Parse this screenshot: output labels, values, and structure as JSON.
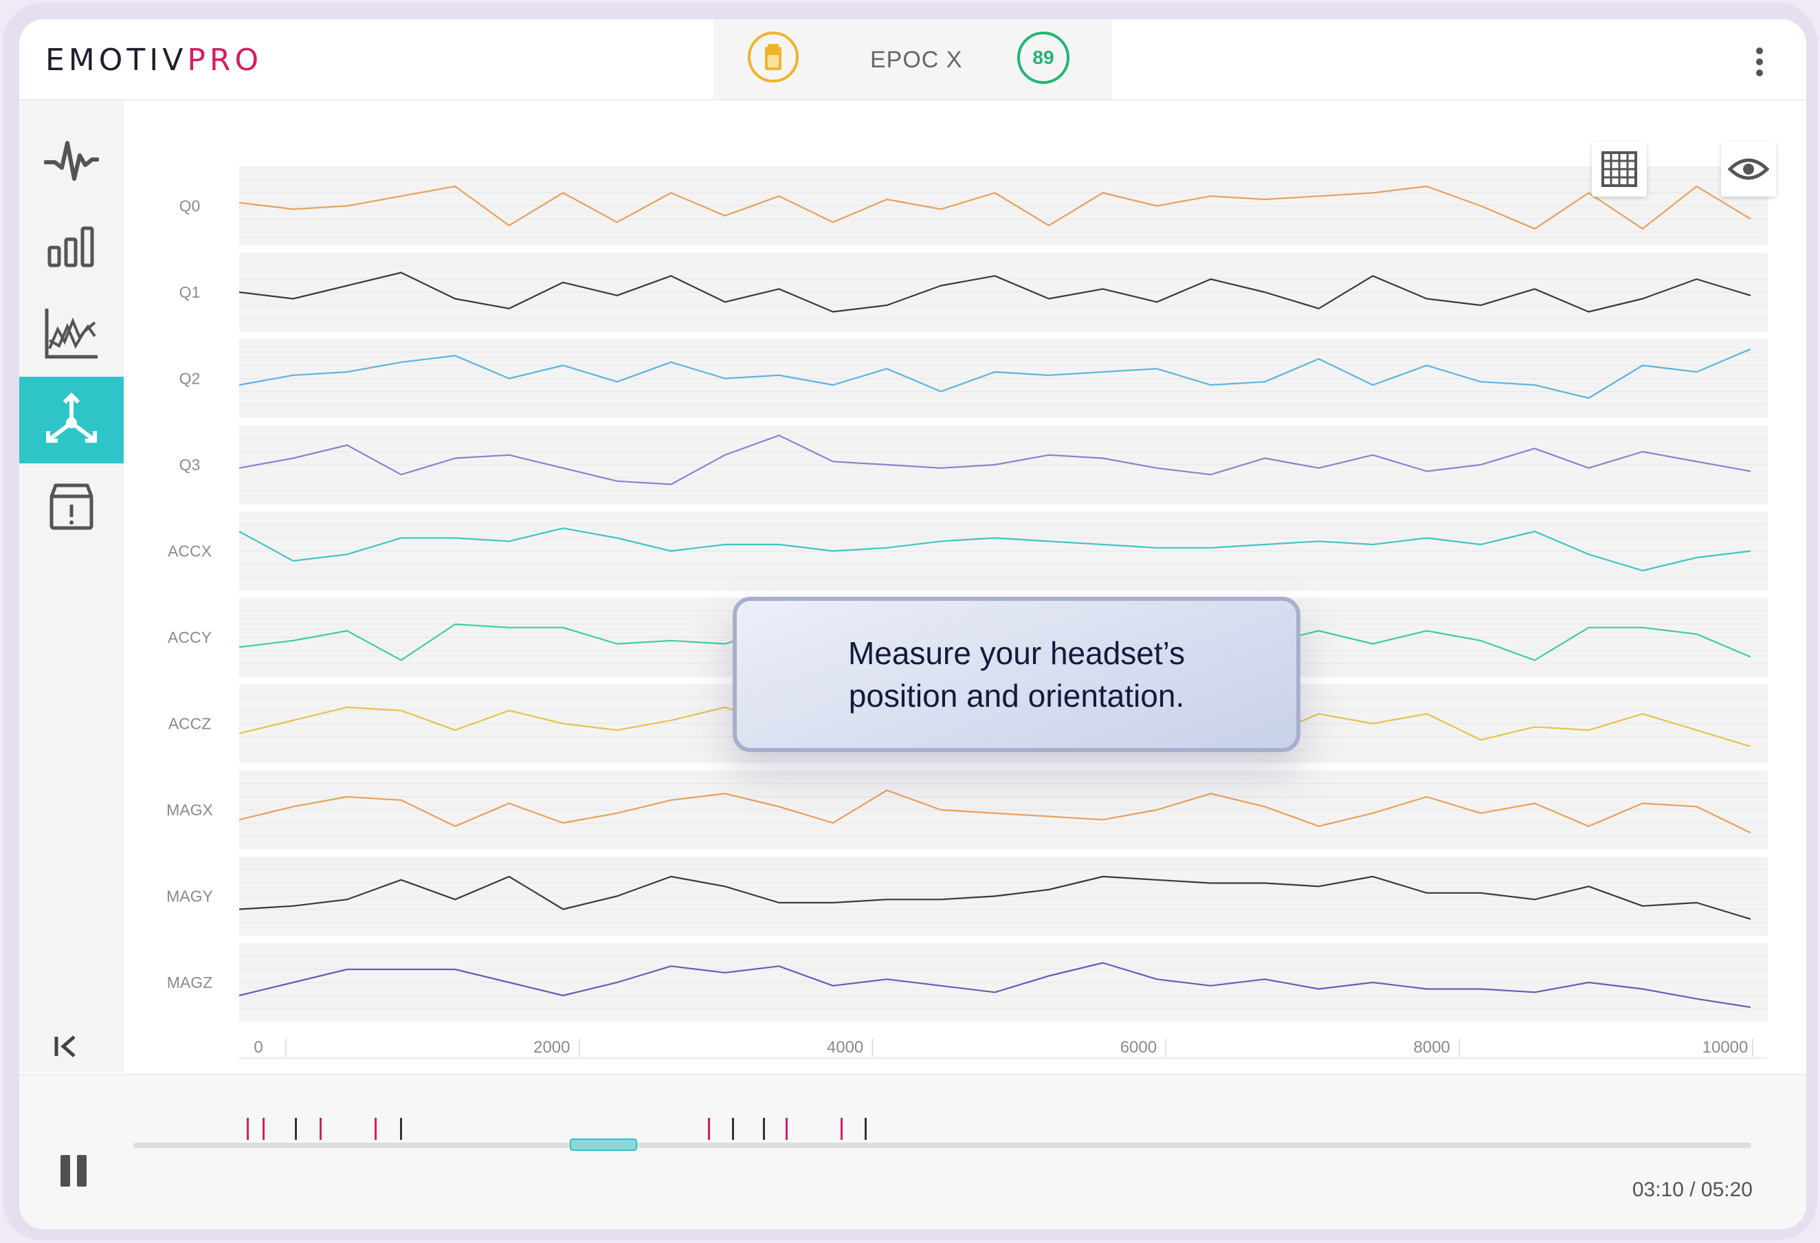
{
  "app": {
    "logo_primary": "EMOTIV",
    "logo_secondary": "PRO",
    "brand_color": "#d81b60",
    "accent_color": "#2ec4c8"
  },
  "header": {
    "battery_icon": "battery-icon",
    "device_name": "EPOC X",
    "contact_quality": "89",
    "menu_icon": "more-vertical-icon"
  },
  "sidebar": {
    "items": [
      {
        "icon": "waveform-icon",
        "active": false
      },
      {
        "icon": "bar-chart-icon",
        "active": false
      },
      {
        "icon": "line-chart-icon",
        "active": false
      },
      {
        "icon": "motion-axes-icon",
        "active": true
      },
      {
        "icon": "marker-box-icon",
        "active": false
      }
    ],
    "collapse_icon": "collapse-left-icon"
  },
  "toolbar": {
    "grid_icon": "grid-icon",
    "visibility_icon": "eye-icon"
  },
  "tooltip": {
    "line1": "Measure your headset’s",
    "line2": "position and orientation."
  },
  "chart_data": {
    "type": "line",
    "x_ticks": [
      "0",
      "2000",
      "4000",
      "6000",
      "8000",
      "10000"
    ],
    "xlim": [
      0,
      10000
    ],
    "grid": true,
    "series": [
      {
        "name": "Q0",
        "color": "#e8a05a",
        "values": [
          0.45,
          0.55,
          0.5,
          0.35,
          0.2,
          0.8,
          0.3,
          0.75,
          0.3,
          0.65,
          0.35,
          0.75,
          0.4,
          0.55,
          0.3,
          0.8,
          0.3,
          0.5,
          0.35,
          0.4,
          0.35,
          0.3,
          0.2,
          0.5,
          0.85,
          0.3,
          0.85,
          0.2,
          0.7
        ]
      },
      {
        "name": "Q1",
        "color": "#3a3a3a",
        "values": [
          0.5,
          0.6,
          0.4,
          0.2,
          0.6,
          0.75,
          0.35,
          0.55,
          0.25,
          0.65,
          0.45,
          0.8,
          0.7,
          0.4,
          0.25,
          0.6,
          0.45,
          0.65,
          0.3,
          0.5,
          0.75,
          0.25,
          0.6,
          0.7,
          0.45,
          0.8,
          0.6,
          0.3,
          0.55
        ]
      },
      {
        "name": "Q2",
        "color": "#5ab4e0",
        "values": [
          0.6,
          0.45,
          0.4,
          0.25,
          0.15,
          0.5,
          0.3,
          0.55,
          0.25,
          0.5,
          0.45,
          0.6,
          0.35,
          0.7,
          0.4,
          0.45,
          0.4,
          0.35,
          0.6,
          0.55,
          0.2,
          0.6,
          0.3,
          0.55,
          0.6,
          0.8,
          0.3,
          0.4,
          0.05
        ]
      },
      {
        "name": "Q3",
        "color": "#8f7fcf",
        "values": [
          0.55,
          0.4,
          0.2,
          0.65,
          0.4,
          0.35,
          0.55,
          0.75,
          0.8,
          0.35,
          0.05,
          0.45,
          0.5,
          0.55,
          0.5,
          0.35,
          0.4,
          0.55,
          0.65,
          0.4,
          0.55,
          0.35,
          0.6,
          0.5,
          0.25,
          0.55,
          0.3,
          0.45,
          0.6
        ]
      },
      {
        "name": "ACCX",
        "color": "#3cc6c2",
        "values": [
          0.2,
          0.65,
          0.55,
          0.3,
          0.3,
          0.35,
          0.15,
          0.3,
          0.5,
          0.4,
          0.4,
          0.5,
          0.45,
          0.35,
          0.3,
          0.35,
          0.4,
          0.45,
          0.45,
          0.4,
          0.35,
          0.4,
          0.3,
          0.4,
          0.2,
          0.55,
          0.8,
          0.6,
          0.5
        ]
      },
      {
        "name": "ACCY",
        "color": "#3dcf96",
        "values": [
          0.65,
          0.55,
          0.4,
          0.85,
          0.3,
          0.35,
          0.35,
          0.6,
          0.55,
          0.6,
          0.35,
          0.45,
          0.6,
          0.5,
          0.4,
          0.45,
          0.55,
          0.5,
          0.5,
          0.6,
          0.4,
          0.6,
          0.4,
          0.55,
          0.85,
          0.35,
          0.35,
          0.45,
          0.8
        ]
      },
      {
        "name": "ACCZ",
        "color": "#e8c14a",
        "values": [
          0.65,
          0.45,
          0.25,
          0.3,
          0.6,
          0.3,
          0.5,
          0.6,
          0.45,
          0.25,
          0.5,
          0.55,
          0.7,
          0.3,
          0.55,
          0.4,
          0.3,
          0.6,
          0.45,
          0.7,
          0.35,
          0.5,
          0.35,
          0.75,
          0.55,
          0.6,
          0.35,
          0.6,
          0.85
        ]
      },
      {
        "name": "MAGX",
        "color": "#e8a05a",
        "values": [
          0.65,
          0.45,
          0.3,
          0.35,
          0.75,
          0.4,
          0.7,
          0.55,
          0.35,
          0.25,
          0.45,
          0.7,
          0.2,
          0.5,
          0.55,
          0.6,
          0.65,
          0.5,
          0.25,
          0.45,
          0.75,
          0.55,
          0.3,
          0.55,
          0.4,
          0.75,
          0.4,
          0.45,
          0.85
        ]
      },
      {
        "name": "MAGY",
        "color": "#3a3a3a",
        "values": [
          0.7,
          0.65,
          0.55,
          0.25,
          0.55,
          0.2,
          0.7,
          0.5,
          0.2,
          0.35,
          0.6,
          0.6,
          0.55,
          0.55,
          0.5,
          0.4,
          0.2,
          0.25,
          0.3,
          0.3,
          0.35,
          0.2,
          0.45,
          0.45,
          0.55,
          0.35,
          0.65,
          0.6,
          0.85
        ]
      },
      {
        "name": "MAGZ",
        "color": "#6a5bb8",
        "values": [
          0.7,
          0.5,
          0.3,
          0.3,
          0.3,
          0.5,
          0.7,
          0.5,
          0.25,
          0.35,
          0.25,
          0.55,
          0.45,
          0.55,
          0.65,
          0.4,
          0.2,
          0.45,
          0.55,
          0.45,
          0.6,
          0.5,
          0.6,
          0.6,
          0.65,
          0.5,
          0.6,
          0.75,
          0.88
        ]
      }
    ]
  },
  "player": {
    "pause_icon": "pause-icon",
    "time_display": "03:10 / 05:20",
    "position_fraction": 0.28,
    "markers": [
      {
        "pos": 0.07,
        "color": "#d81b60"
      },
      {
        "pos": 0.08,
        "color": "#d81b60"
      },
      {
        "pos": 0.1,
        "color": "#333333"
      },
      {
        "pos": 0.115,
        "color": "#d81b60"
      },
      {
        "pos": 0.149,
        "color": "#d81b60"
      },
      {
        "pos": 0.165,
        "color": "#333333"
      },
      {
        "pos": 0.355,
        "color": "#d81b60"
      },
      {
        "pos": 0.37,
        "color": "#333333"
      },
      {
        "pos": 0.389,
        "color": "#333333"
      },
      {
        "pos": 0.403,
        "color": "#d81b60"
      },
      {
        "pos": 0.437,
        "color": "#d81b60"
      },
      {
        "pos": 0.452,
        "color": "#333333"
      }
    ]
  }
}
